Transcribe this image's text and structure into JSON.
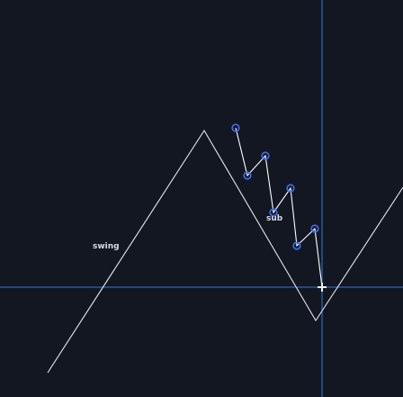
{
  "chart_area": {
    "background": "#131722",
    "line_color": "#e8e8ea",
    "subwave_color": "#ffffff",
    "point_color": "#2f58d4",
    "point_stroke": "#3f6ff0",
    "crosshair_color": "#2f78d8"
  },
  "labels": {
    "swing": "swing",
    "sub": "sub"
  },
  "icons": {
    "crosshair_cursor": "crosshair-icon"
  }
}
